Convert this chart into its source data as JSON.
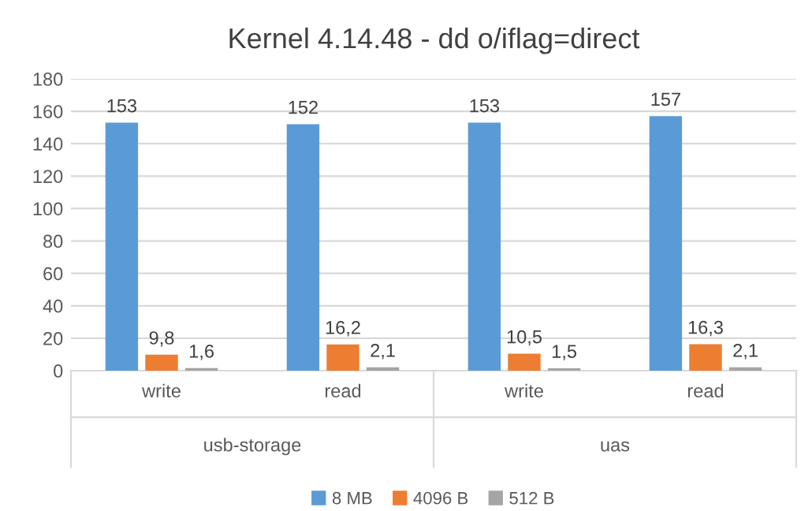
{
  "chart_data": {
    "type": "bar",
    "title": "Kernel 4.14.48 - dd o/iflag=direct",
    "categories": [
      "write",
      "read",
      "write",
      "read"
    ],
    "series": [
      {
        "name": "8 MB",
        "color": "#5b9bd5",
        "values": [
          153,
          152,
          153,
          157
        ],
        "value_labels": [
          "153",
          "152",
          "153",
          "157"
        ]
      },
      {
        "name": "4096 B",
        "color": "#ed7d31",
        "values": [
          9.8,
          16.2,
          10.5,
          16.3
        ],
        "value_labels": [
          "9,8",
          "16,2",
          "10,5",
          "16,3"
        ]
      },
      {
        "name": "512 B",
        "color": "#a5a5a5",
        "values": [
          1.6,
          2.1,
          1.5,
          2.1
        ],
        "value_labels": [
          "1,6",
          "2,1",
          "1,5",
          "2,1"
        ]
      }
    ],
    "annotations": [
      "usb-storage",
      "uas"
    ],
    "ylim": [
      0,
      180
    ],
    "yticks": [
      0,
      20,
      40,
      60,
      80,
      100,
      120,
      140,
      160,
      180
    ],
    "grid": "y",
    "legend": "bottom"
  }
}
